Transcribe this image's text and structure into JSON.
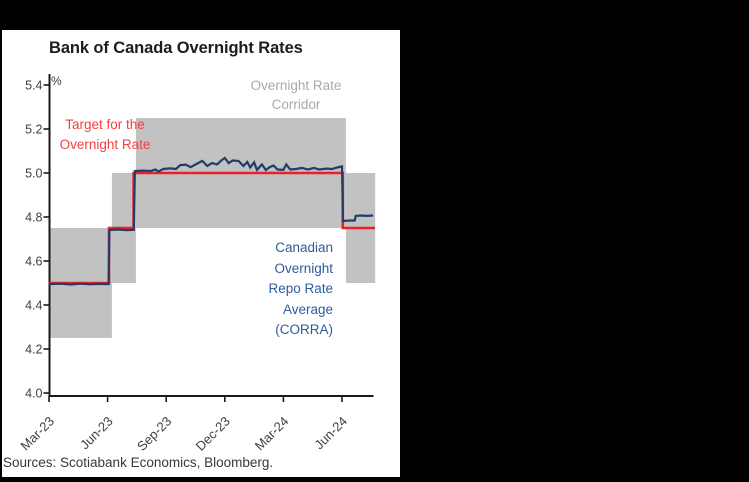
{
  "window": {
    "frame_color": "#000000",
    "card_background": "#ffffff"
  },
  "palette": {
    "target_red_line": "#e8222a",
    "target_red_text": "#f2423e",
    "corra_blue_line": "#1f3d6b",
    "corra_blue_text": "#2e5c9c",
    "corridor_band_gray": "#c2c2c2",
    "corridor_text_gray": "#a9a9a9",
    "axis_black": "#1a1a1a",
    "tick_label_gray": "#3f3f3f"
  },
  "chart_data": {
    "type": "line",
    "title": "Bank of Canada Overnight Rates",
    "ylabel": "%",
    "xlabel": "",
    "ylim": [
      4.0,
      5.4
    ],
    "grid": false,
    "y_ticks": [
      5.4,
      5.2,
      5.0,
      4.8,
      4.6,
      4.4,
      4.2,
      4.0
    ],
    "x_ticks": [
      {
        "label": "Mar-23",
        "m": 0
      },
      {
        "label": "Jun-23",
        "m": 3
      },
      {
        "label": "Sep-23",
        "m": 6
      },
      {
        "label": "Dec-23",
        "m": 9
      },
      {
        "label": "Mar-24",
        "m": 12
      },
      {
        "label": "Jun-24",
        "m": 15
      }
    ],
    "x_unit": "months since Mar-2023",
    "x_end_m": 16.7,
    "corridor": {
      "name": "Overnight Rate Corridor",
      "color": "#c2c2c2",
      "bands": [
        {
          "from_m": 0.0,
          "to_m": 3.22,
          "low": 4.25,
          "high": 4.75
        },
        {
          "from_m": 3.22,
          "to_m": 4.45,
          "low": 4.5,
          "high": 5.0
        },
        {
          "from_m": 4.45,
          "to_m": 15.2,
          "low": 4.75,
          "high": 5.25
        },
        {
          "from_m": 15.2,
          "to_m": 16.7,
          "low": 4.5,
          "high": 5.0
        }
      ]
    },
    "series": [
      {
        "name": "Target for the Overnight Rate",
        "color": "#e8222a",
        "width": 2.6,
        "points": [
          [
            0,
            4.5
          ],
          [
            3.07,
            4.5
          ],
          [
            3.07,
            4.75
          ],
          [
            4.33,
            4.75
          ],
          [
            4.33,
            5.0
          ],
          [
            15.04,
            5.0
          ],
          [
            15.04,
            4.75
          ],
          [
            16.69,
            4.75
          ]
        ]
      },
      {
        "name": "Canadian Overnight Repo Rate Average (CORRA)",
        "color": "#1f3d6b",
        "width": 2.2,
        "points": [
          [
            0.0,
            4.495
          ],
          [
            0.6,
            4.497
          ],
          [
            1.1,
            4.493
          ],
          [
            1.6,
            4.497
          ],
          [
            2.1,
            4.494
          ],
          [
            2.6,
            4.496
          ],
          [
            3.05,
            4.495
          ],
          [
            3.09,
            4.741
          ],
          [
            3.5,
            4.743
          ],
          [
            4.0,
            4.74
          ],
          [
            4.34,
            4.742
          ],
          [
            4.4,
            5.009
          ],
          [
            4.8,
            5.011
          ],
          [
            5.2,
            5.009
          ],
          [
            5.45,
            5.016
          ],
          [
            5.6,
            5.007
          ],
          [
            5.85,
            5.018
          ],
          [
            6.2,
            5.021
          ],
          [
            6.5,
            5.018
          ],
          [
            6.72,
            5.036
          ],
          [
            7.0,
            5.038
          ],
          [
            7.25,
            5.027
          ],
          [
            7.55,
            5.041
          ],
          [
            7.85,
            5.055
          ],
          [
            8.1,
            5.032
          ],
          [
            8.35,
            5.045
          ],
          [
            8.6,
            5.039
          ],
          [
            8.85,
            5.059
          ],
          [
            9.0,
            5.068
          ],
          [
            9.2,
            5.045
          ],
          [
            9.4,
            5.057
          ],
          [
            9.7,
            5.055
          ],
          [
            9.95,
            5.032
          ],
          [
            10.15,
            5.05
          ],
          [
            10.3,
            5.025
          ],
          [
            10.5,
            5.048
          ],
          [
            10.65,
            5.014
          ],
          [
            10.9,
            5.039
          ],
          [
            11.1,
            5.014
          ],
          [
            11.3,
            5.027
          ],
          [
            11.5,
            5.034
          ],
          [
            11.7,
            5.016
          ],
          [
            12.0,
            5.014
          ],
          [
            12.15,
            5.039
          ],
          [
            12.35,
            5.016
          ],
          [
            12.65,
            5.018
          ],
          [
            12.95,
            5.023
          ],
          [
            13.25,
            5.016
          ],
          [
            13.55,
            5.023
          ],
          [
            13.85,
            5.016
          ],
          [
            14.2,
            5.02
          ],
          [
            14.5,
            5.018
          ],
          [
            14.75,
            5.025
          ],
          [
            15.0,
            5.03
          ],
          [
            15.05,
            4.782
          ],
          [
            15.4,
            4.784
          ],
          [
            15.65,
            4.784
          ],
          [
            15.7,
            4.805
          ],
          [
            16.0,
            4.807
          ],
          [
            16.3,
            4.805
          ],
          [
            16.59,
            4.807
          ]
        ]
      }
    ]
  },
  "annotations": {
    "percent": "%",
    "corridor_label": "Overnight Rate\nCorridor",
    "target_label": "Target for the\nOvernight Rate",
    "corra_label": "Canadian\nOvernight\nRepo Rate\nAverage\n(CORRA)"
  },
  "footer": {
    "sources": "Sources: Scotiabank Economics, Bloomberg."
  }
}
